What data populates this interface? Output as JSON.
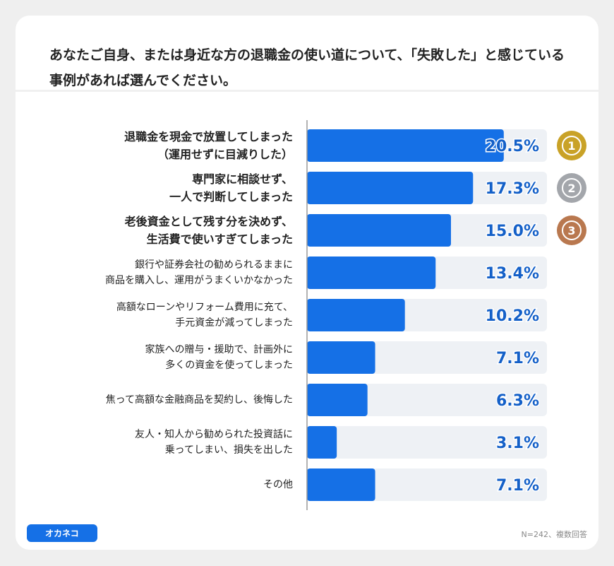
{
  "chart_data": {
    "type": "bar",
    "orientation": "horizontal",
    "title": "あなたご自身、または身近な方の退職金の使い道について、「失敗した」と感じている事例があれば選んでください。",
    "categories": [
      "退職金を現金で放置してしまった\n（運用せずに目減りした）",
      "専門家に相談せず、\n一人で判断してしまった",
      "老後資金として残す分を決めず、\n生活費で使いすぎてしまった",
      "銀行や証券会社の勧められるままに\n商品を購入し、運用がうまくいかなかった",
      "高額なローンやリフォーム費用に充て、\n手元資金が減ってしまった",
      "家族への贈与・援助で、計画外に\n多くの資金を使ってしまった",
      "焦って高額な金融商品を契約し、後悔した",
      "友人・知人から勧められた投資話に\n乗ってしまい、損失を出した",
      "その他"
    ],
    "values": [
      20.5,
      17.3,
      15.0,
      13.4,
      10.2,
      7.1,
      6.3,
      3.1,
      7.1
    ],
    "value_labels": [
      "20.5%",
      "17.3%",
      "15.0%",
      "13.4%",
      "10.2%",
      "7.1%",
      "6.3%",
      "3.1%",
      "7.1%"
    ],
    "color": "#1570e6",
    "track_color": "#eef1f5",
    "xlim": [
      0,
      25
    ],
    "medals": [
      {
        "label": "1",
        "color": "#c9a227"
      },
      {
        "label": "2",
        "color": "#a3a6ab"
      },
      {
        "label": "3",
        "color": "#b9784f"
      }
    ],
    "note": "N=242、複数回答",
    "logo": "オカネコ"
  }
}
